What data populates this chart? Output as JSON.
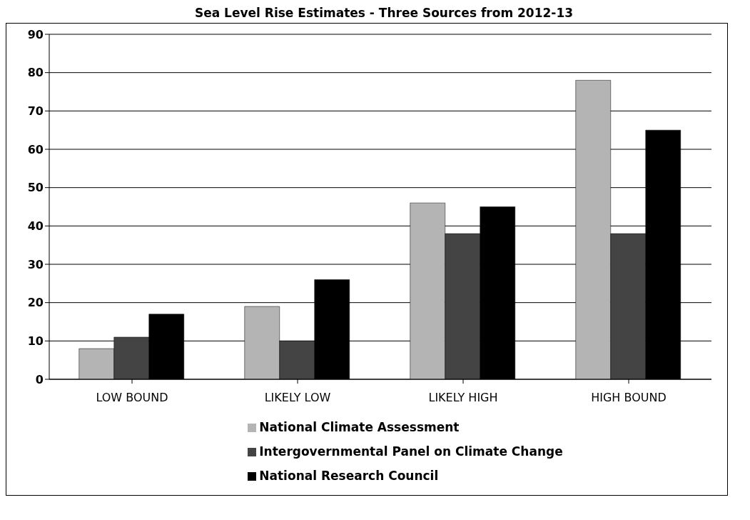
{
  "chart_data": {
    "type": "bar",
    "title": "Sea Level Rise Estimates - Three Sources from 2012-13",
    "categories": [
      "LOW BOUND",
      "LIKELY LOW",
      "LIKELY HIGH",
      "HIGH BOUND"
    ],
    "series": [
      {
        "name": "National Climate Assessment",
        "color": "#b4b4b4",
        "values": [
          8,
          19,
          46,
          78
        ]
      },
      {
        "name": "Intergovernmental Panel on Climate Change",
        "color": "#444444",
        "values": [
          11,
          10,
          38,
          38
        ]
      },
      {
        "name": "National Research Council",
        "color": "#000000",
        "values": [
          17,
          26,
          45,
          65
        ]
      }
    ],
    "ylim": [
      0,
      90
    ],
    "yticks": [
      0,
      10,
      20,
      30,
      40,
      50,
      60,
      70,
      80,
      90
    ],
    "grid": "y",
    "legend": "bottom"
  }
}
